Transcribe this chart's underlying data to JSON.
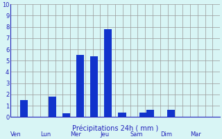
{
  "bars": [
    {
      "x": 1.5,
      "height": 1.5
    },
    {
      "x": 3.5,
      "height": 1.8
    },
    {
      "x": 4.5,
      "height": 0.3
    },
    {
      "x": 5.5,
      "height": 5.5
    },
    {
      "x": 6.5,
      "height": 5.4
    },
    {
      "x": 7.5,
      "height": 7.8
    },
    {
      "x": 8.5,
      "height": 0.4
    },
    {
      "x": 10.0,
      "height": 0.4
    },
    {
      "x": 10.5,
      "height": 0.6
    },
    {
      "x": 12.0,
      "height": 0.6
    }
  ],
  "bar_color": "#1133cc",
  "background_color": "#d8f5f5",
  "grid_color": "#999999",
  "text_color": "#2222bb",
  "xlabel": "Précipitations 24h ( mm )",
  "ylim": [
    0,
    10
  ],
  "yticks": [
    0,
    1,
    2,
    3,
    4,
    5,
    6,
    7,
    8,
    9,
    10
  ],
  "day_labels": [
    "Ven",
    "Lun",
    "Mer",
    "Jeu",
    "Sam",
    "Dim",
    "Mar"
  ],
  "bar_width": 0.55,
  "xlim": [
    0.5,
    15.5
  ],
  "figsize": [
    3.2,
    2.0
  ],
  "dpi": 100
}
